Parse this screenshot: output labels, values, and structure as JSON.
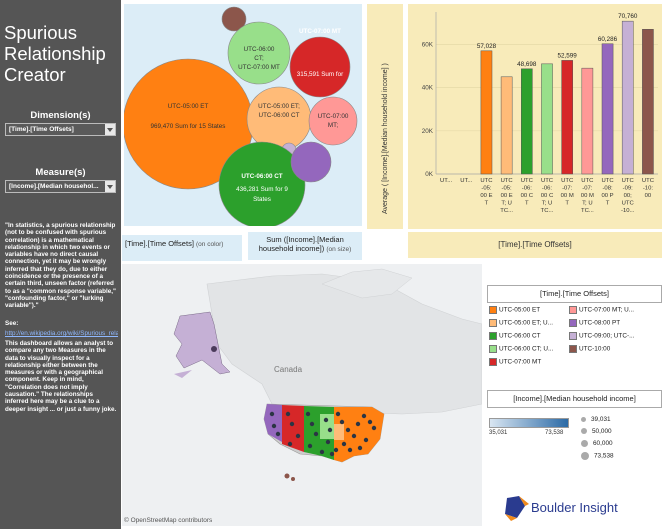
{
  "sidebar": {
    "title": "Spurious Relationship Creator",
    "dimension_label": "Dimension(s)",
    "dimension_value": "[Time].[Time Offsets]",
    "measure_label": "Measure(s)",
    "measure_value": "[Income].[Median househol...",
    "quote": "\"In statistics, a spurious relationship (not to be confused with spurious correlation) is a mathematical relationship in which two events or variables have no direct causal connection, yet it may be wrongly inferred that they do, due to either coincidence or the presence of a certain third, unseen factor (referred to as a \"common response variable,\" \"confounding factor,\" or \"lurking variable\").\"",
    "see_label": "See:",
    "see_link": "http://en.wikipedia.org/wiki/Spurious_relationship",
    "description": "This dashboard allows an analyst to compare any two Measures in the data to visually inspect for a relationship either between the measures or with a geographical component.  Keep in mind, \"Correlation does not imply causation.\"  The relationships inferred here may be a clue to a deeper insight ... or just a funny joke."
  },
  "bubble_labels": {
    "et_name": "UTC-05:00 ET",
    "et_value": "969,470 Sum for 15 States",
    "ct_name": "UTC-06:00 CT",
    "ct_value": "436,281 Sum for 9 States",
    "mt_name": "UTC-07:00 MT",
    "mt_value": "315,591 Sum for",
    "ct_mt_name": "UTC-06:00 CT; UTC-07:00 MT",
    "et_ct_name": "UTC-05:00 ET; UTC-06:00 CT",
    "mt_semi_name": "UTC-07:00 MT;"
  },
  "bubble_colors": {
    "et": "#ff8012",
    "ct": "#2ca02c",
    "mt": "#d62728",
    "ct_mt": "#98df8a",
    "et_ct": "#ffbb78",
    "mt_semi": "#ff9896",
    "pt": "#9467bd",
    "hst": "#8c564b",
    "akst": "#c5b0d5"
  },
  "legends": {
    "color_field": "[Time].[Time Offsets]",
    "color_suffix": "(on color)",
    "size_field": "Sum ([Income].[Median household income])",
    "size_suffix": "(on size)",
    "bar_x_axis": "[Time].[Time Offsets]",
    "bar_y_axis": "Average ( [Income].[Median household income] )"
  },
  "chart_data": {
    "type": "bar",
    "ylabel": "Average ( [Income].[Median household income] )",
    "xlabel": "[Time].[Time Offsets]",
    "ylim": [
      0,
      75000
    ],
    "yticks": [
      "0K",
      "20K",
      "40K",
      "60K"
    ],
    "categories": [
      "UT...",
      "UT...",
      "UTC-05:00 ET",
      "UTC-05:00 ET; UT...",
      "UTC-06:00 CT",
      "UTC-06:00 CT; UTC...",
      "UTC-07:00 MT",
      "UTC-07:00 MT; UTC...",
      "UTC-08:00 PT",
      "UTC-09:00; UTC-10...",
      "UTC-10:00"
    ],
    "values": [
      null,
      null,
      57028,
      45000,
      48698,
      51000,
      52599,
      49000,
      60286,
      70760,
      67000
    ],
    "data_labels": [
      "",
      "",
      "57,028",
      "",
      "48,698",
      "",
      "52,599",
      "",
      "60,286",
      "70,760",
      ""
    ],
    "tick_lines": [
      [
        "UT..."
      ],
      [
        "UT..."
      ],
      [
        "UTC",
        "-05:",
        "00 E",
        "T"
      ],
      [
        "UTC",
        "-05:",
        "00 E",
        "T; U",
        "TC..."
      ],
      [
        "UTC",
        "-06:",
        "00 C",
        "T"
      ],
      [
        "UTC",
        "-06:",
        "00 C",
        "T; U",
        "TC..."
      ],
      [
        "UTC",
        "-07:",
        "00 M",
        "T"
      ],
      [
        "UTC",
        "-07:",
        "00 M",
        "T; U",
        "TC..."
      ],
      [
        "UTC",
        "-08:",
        "00 P",
        "T"
      ],
      [
        "UTC",
        "-09:",
        "00;",
        "UTC",
        "-10..."
      ],
      [
        "UTC",
        "-10:",
        "00"
      ]
    ],
    "colors": [
      "",
      "",
      "#ff8012",
      "#ffbb78",
      "#2ca02c",
      "#98df8a",
      "#d62728",
      "#ff9896",
      "#9467bd",
      "#c5b0d5",
      "#8c564b"
    ],
    "grid": true
  },
  "map": {
    "country_label": "Canada",
    "attribution": "© OpenStreetMap contributors"
  },
  "color_legend": {
    "title": "[Time].[Time Offsets]",
    "items": [
      {
        "label": "UTC-05:00 ET",
        "color": "#ff8012"
      },
      {
        "label": "UTC-07:00 MT; U...",
        "color": "#ff9896"
      },
      {
        "label": "UTC-05:00 ET; U...",
        "color": "#ffbb78"
      },
      {
        "label": "UTC-08:00 PT",
        "color": "#9467bd"
      },
      {
        "label": "UTC-06:00 CT",
        "color": "#2ca02c"
      },
      {
        "label": "UTC-09:00; UTC-...",
        "color": "#c5b0d5"
      },
      {
        "label": "UTC-06:00 CT; U...",
        "color": "#98df8a"
      },
      {
        "label": "UTC-10:00",
        "color": "#8c564b"
      },
      {
        "label": "UTC-07:00 MT",
        "color": "#d62728"
      }
    ]
  },
  "income_legend": {
    "title": "[Income].[Median household income]",
    "range_min": "35,031",
    "range_max": "73,538",
    "sizes": [
      "39,031",
      "50,000",
      "60,000",
      "73,538"
    ]
  },
  "brand": {
    "name": "Boulder Insight"
  }
}
